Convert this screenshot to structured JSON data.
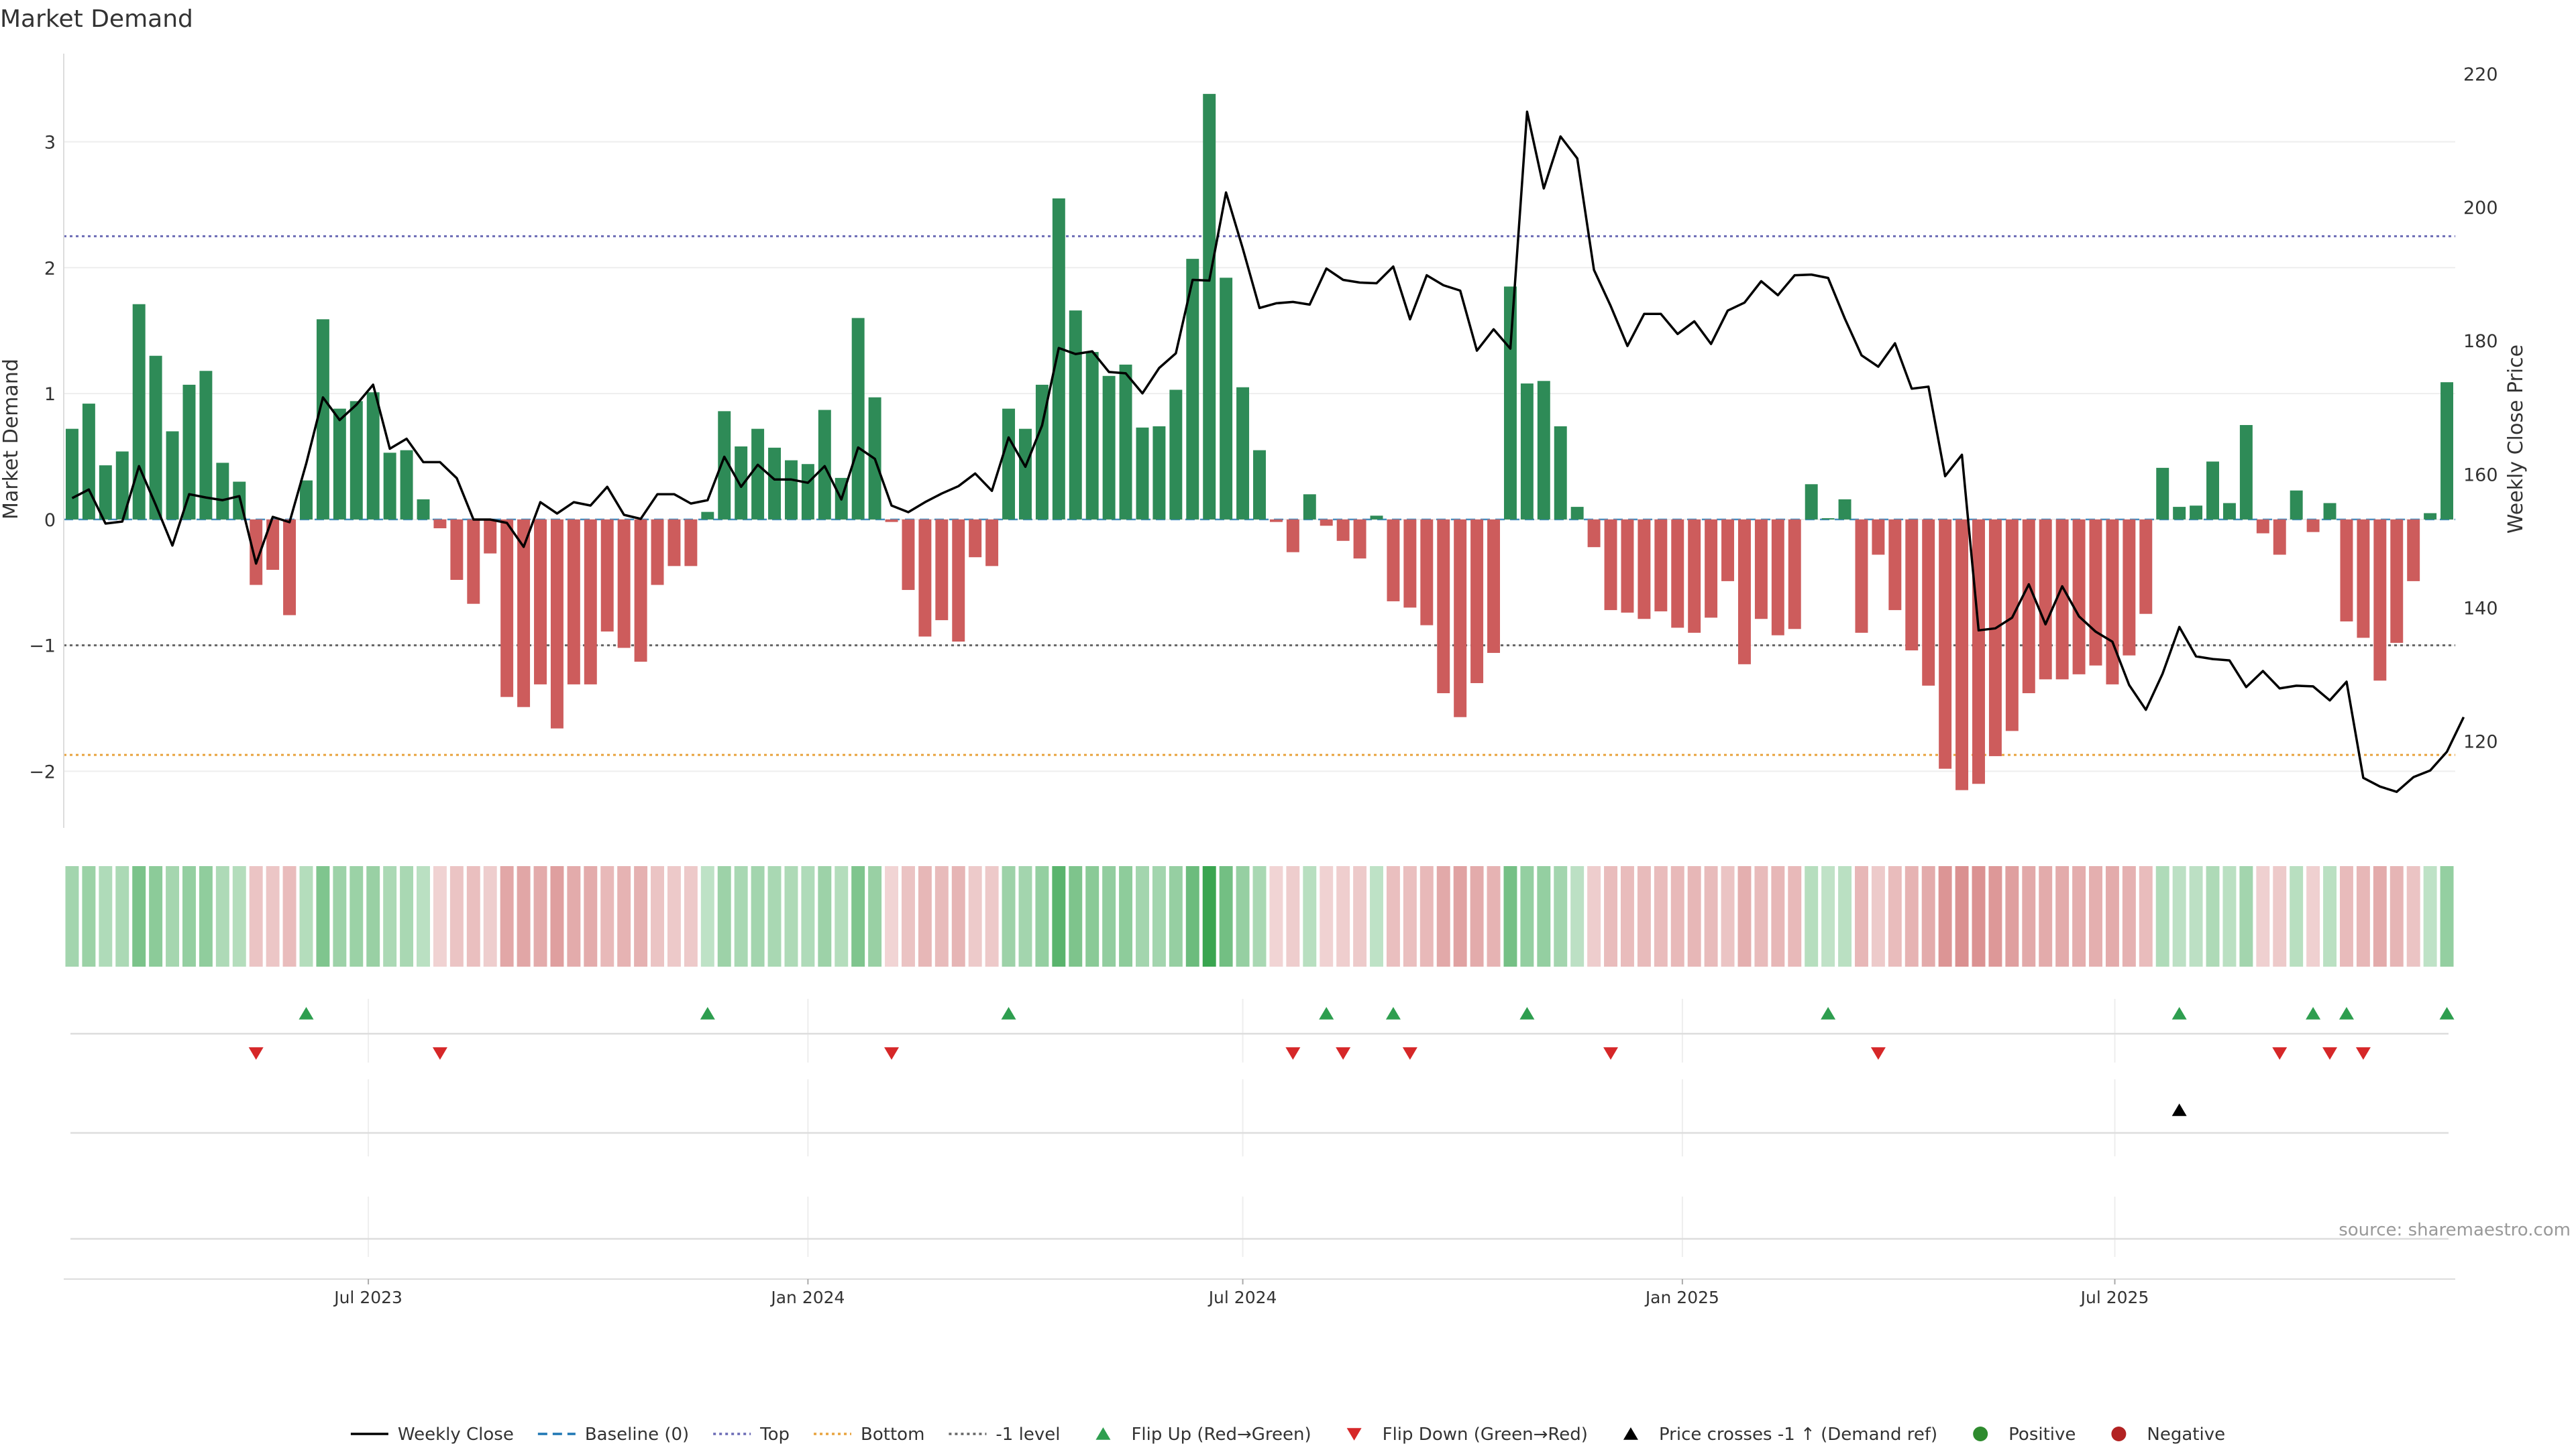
{
  "chart_data": {
    "type": "bar",
    "title": "Market Demand",
    "ylabel": "Market Demand",
    "y2label": "Weekly Close Price",
    "ylim": [
      -2.45,
      3.7
    ],
    "y2lim": [
      107,
      223
    ],
    "yticks": [
      -2,
      -1,
      0,
      1,
      2,
      3
    ],
    "yticklabels": [
      "−2",
      "−1",
      "0",
      "1",
      "2",
      "3"
    ],
    "y2ticks": [
      120,
      140,
      160,
      180,
      200,
      220
    ],
    "x_start": "2023-02-27",
    "x_interval_days": 7,
    "xticks": [
      {
        "date": "2023-07-01",
        "label": "Jul 2023"
      },
      {
        "date": "2024-01-01",
        "label": "Jan 2024"
      },
      {
        "date": "2024-07-01",
        "label": "Jul 2024"
      },
      {
        "date": "2025-01-01",
        "label": "Jan 2025"
      },
      {
        "date": "2025-07-01",
        "label": "Jul 2025"
      }
    ],
    "reference_lines": [
      {
        "name": "Top",
        "value": 2.25,
        "color": "#6b6bb5",
        "style": "dotted"
      },
      {
        "name": "-1 level",
        "value": -1,
        "color": "#666666",
        "style": "dotted"
      },
      {
        "name": "Bottom",
        "value": -1.87,
        "color": "#e8a33d",
        "style": "dotted"
      }
    ],
    "series": [
      {
        "name": "Market Demand",
        "values": [
          0.72,
          0.92,
          0.43,
          0.54,
          1.71,
          1.3,
          0.7,
          1.07,
          1.18,
          0.45,
          0.3,
          -0.52,
          -0.4,
          -0.76,
          0.31,
          1.59,
          0.88,
          0.94,
          1.01,
          0.53,
          0.55,
          0.16,
          -0.07,
          -0.48,
          -0.67,
          -0.27,
          -1.41,
          -1.49,
          -1.31,
          -1.66,
          -1.31,
          -1.31,
          -0.89,
          -1.02,
          -1.13,
          -0.52,
          -0.37,
          -0.37,
          0.06,
          0.86,
          0.58,
          0.72,
          0.57,
          0.47,
          0.44,
          0.87,
          0.33,
          1.6,
          0.97,
          -0.02,
          -0.56,
          -0.93,
          -0.8,
          -0.97,
          -0.3,
          -0.37,
          0.88,
          0.72,
          1.07,
          2.55,
          1.66,
          1.33,
          1.14,
          1.23,
          0.73,
          0.74,
          1.03,
          2.07,
          3.38,
          1.92,
          1.05,
          0.55,
          -0.02,
          -0.26,
          0.2,
          -0.05,
          -0.17,
          -0.31,
          0.03,
          -0.65,
          -0.7,
          -0.84,
          -1.38,
          -1.57,
          -1.3,
          -1.06,
          1.85,
          1.08,
          1.1,
          0.74,
          0.1,
          -0.22,
          -0.72,
          -0.74,
          -0.79,
          -0.73,
          -0.86,
          -0.9,
          -0.78,
          -0.49,
          -1.15,
          -0.79,
          -0.92,
          -0.87,
          0.28,
          0.01,
          0.16,
          -0.9,
          -0.28,
          -0.72,
          -1.04,
          -1.32,
          -1.98,
          -2.15,
          -2.1,
          -1.88,
          -1.68,
          -1.38,
          -1.27,
          -1.27,
          -1.23,
          -1.16,
          -1.31,
          -1.08,
          -0.75,
          0.41,
          0.1,
          0.11,
          0.46,
          0.13,
          0.75,
          -0.11,
          -0.28,
          0.23,
          -0.1,
          0.13,
          -0.81,
          -0.94,
          -1.28,
          -0.98,
          -0.49,
          0.05,
          1.09
        ]
      },
      {
        "name": "Weekly Close",
        "values": [
          156.4,
          157.7,
          152.6,
          152.9,
          161.2,
          155.4,
          149.3,
          157,
          156.5,
          156.1,
          156.7,
          146.6,
          153.6,
          152.8,
          161.6,
          171.5,
          168.1,
          170.4,
          173.4,
          163.8,
          165.3,
          161.8,
          161.8,
          159.4,
          153.2,
          153.2,
          152.7,
          149.1,
          155.8,
          154.1,
          155.8,
          155.3,
          158.1,
          153.9,
          153.3,
          157,
          157,
          155.6,
          156.1,
          162.6,
          158.1,
          161.4,
          159.2,
          159.2,
          158.7,
          161.2,
          156.2,
          164,
          162.3,
          155.3,
          154.3,
          155.8,
          157.1,
          158.2,
          160.1,
          157.5,
          165.5,
          161.1,
          167.3,
          178.9,
          178,
          178.4,
          175.3,
          175.1,
          172.1,
          175.9,
          178.1,
          189.1,
          189,
          202.2,
          193.8,
          184.9,
          185.6,
          185.8,
          185.4,
          190.8,
          189.1,
          188.7,
          188.6,
          191.1,
          183.2,
          189.8,
          188.3,
          187.5,
          178.5,
          181.7,
          178.8,
          214.3,
          202.8,
          210.6,
          207.3,
          190.6,
          185.2,
          179.2,
          184,
          184,
          181,
          182.9,
          179.5,
          184.5,
          185.7,
          188.9,
          186.8,
          189.8,
          189.9,
          189.4,
          183.3,
          177.8,
          176.1,
          179.6,
          172.8,
          173.1,
          159.7,
          162.9,
          136.6,
          136.9,
          138.5,
          143.5,
          137.5,
          143.2,
          138.7,
          136.4,
          134.9,
          128.4,
          124.7,
          130.1,
          137.1,
          132.7,
          132.3,
          132.1,
          128.1,
          130.5,
          127.9,
          128.3,
          128.2,
          126.1,
          128.9,
          114.5,
          113.2,
          112.4,
          114.6,
          115.6,
          118.4,
          123.6
        ]
      }
    ],
    "flip_up_indices": [
      14,
      38,
      56,
      75,
      79,
      87,
      105,
      126,
      134,
      136,
      142
    ],
    "flip_down_indices": [
      11,
      22,
      49,
      73,
      76,
      80,
      92,
      108,
      132,
      135,
      137
    ],
    "price_cross_indices": [
      126
    ],
    "legend": [
      {
        "label": "Weekly Close",
        "symbol": "line",
        "color": "#000000"
      },
      {
        "label": "Baseline (0)",
        "symbol": "dashed",
        "color": "#1f77b4"
      },
      {
        "label": "Top",
        "symbol": "dotted",
        "color": "#6b6bb5"
      },
      {
        "label": "Bottom",
        "symbol": "dotted",
        "color": "#e8a33d"
      },
      {
        "label": "-1 level",
        "symbol": "dotted",
        "color": "#666666"
      },
      {
        "label": "Flip Up (Red→Green)",
        "symbol": "triangle-up",
        "color": "#2e9e4f"
      },
      {
        "label": "Flip Down (Green→Red)",
        "symbol": "triangle-down",
        "color": "#d62728"
      },
      {
        "label": "Price crosses -1 ↑ (Demand ref)",
        "symbol": "triangle-up",
        "color": "#000000"
      },
      {
        "label": "Positive",
        "symbol": "circle",
        "color": "#2e8b2e"
      },
      {
        "label": "Negative",
        "symbol": "circle",
        "color": "#b22222"
      }
    ],
    "legend_placement": "bottom",
    "source_label": "source: sharemaestro.com",
    "colors": {
      "positive": "#2e8b57",
      "negative": "#cd5c5c",
      "price": "#000000"
    }
  }
}
